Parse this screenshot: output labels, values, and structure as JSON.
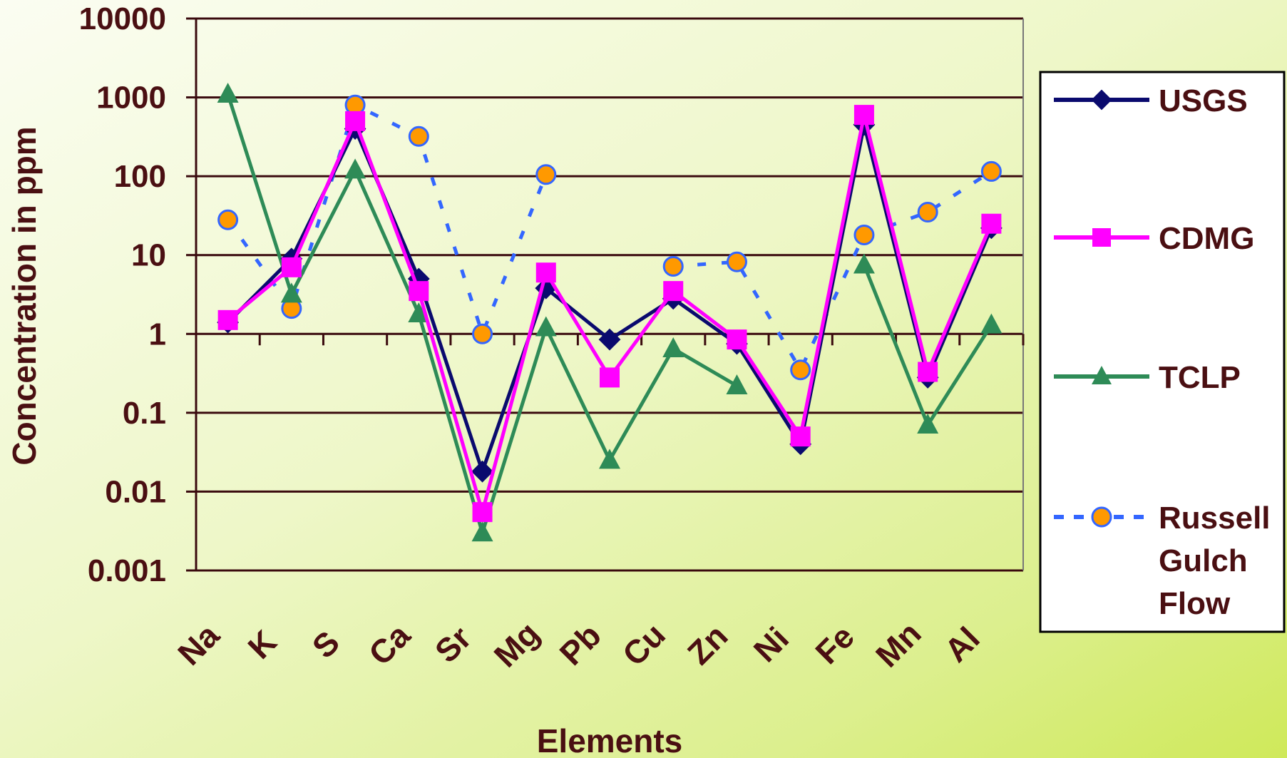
{
  "chart_data": {
    "type": "line",
    "title": "",
    "xlabel": "Elements",
    "ylabel": "Concentration in ppm",
    "yscale": "log",
    "ylim": [
      0.001,
      10000
    ],
    "y_ticks": [
      "10000",
      "1000",
      "100",
      "10",
      "1",
      "0.1",
      "0.01",
      "0.001"
    ],
    "categories": [
      "Na",
      "K",
      "S",
      "Ca",
      "Sr",
      "Mg",
      "Pb",
      "Cu",
      "Zn",
      "Ni",
      "Fe",
      "Mn",
      "Al"
    ],
    "grid": "horizontal",
    "legend_position": "right",
    "series": [
      {
        "name": "USGS",
        "color": "#0a0a6e",
        "marker": "diamond",
        "dash": "solid",
        "values": [
          1.4,
          9,
          400,
          5,
          0.018,
          3.8,
          0.85,
          2.8,
          0.75,
          0.04,
          450,
          0.28,
          22
        ]
      },
      {
        "name": "CDMG",
        "color": "#ff00ff",
        "marker": "square",
        "dash": "solid",
        "values": [
          1.5,
          7,
          500,
          3.5,
          0.0055,
          6,
          0.28,
          3.5,
          0.85,
          0.05,
          600,
          0.33,
          25
        ]
      },
      {
        "name": "TCLP",
        "color": "#2e8b57",
        "marker": "triangle",
        "dash": "solid",
        "values": [
          1100,
          3.2,
          120,
          1.8,
          0.003,
          1.2,
          0.025,
          0.65,
          0.22,
          null,
          7.5,
          0.07,
          1.3
        ]
      },
      {
        "name": "Russell Gulch Flow",
        "legend_lines": [
          "Russell",
          "Gulch",
          "Flow"
        ],
        "color": "#3366ff",
        "marker": "circle",
        "marker_fill": "#ff9900",
        "dash": "dashed",
        "values": [
          28,
          2.1,
          800,
          320,
          1.0,
          105,
          null,
          7.2,
          8.2,
          0.35,
          18,
          35,
          115
        ]
      }
    ]
  }
}
